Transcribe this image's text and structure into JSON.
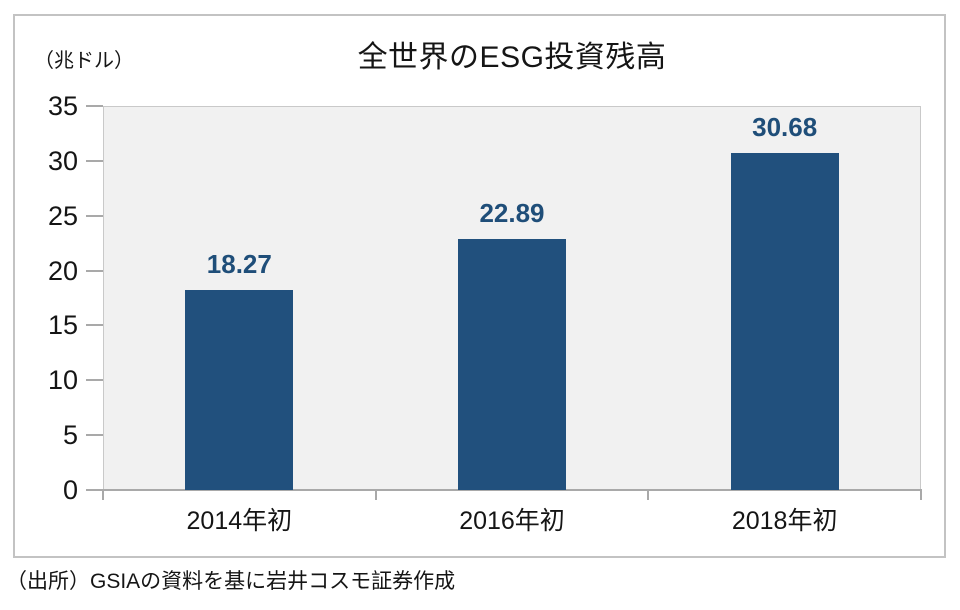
{
  "chart_data": {
    "type": "bar",
    "title": "全世界のESG投資残高",
    "unit_label": "（兆ドル）",
    "categories": [
      "2014年初",
      "2016年初",
      "2018年初"
    ],
    "values": [
      18.27,
      22.89,
      30.68
    ],
    "data_labels": [
      "18.27",
      "22.89",
      "30.68"
    ],
    "ylim": [
      0,
      35
    ],
    "yticks": [
      0,
      5,
      10,
      15,
      20,
      25,
      30,
      35
    ],
    "grid": "off",
    "legend": "none",
    "bar_color": "#21507D",
    "value_label_color": "#1F4E79",
    "plot_background": "#F1F1F1",
    "axis_color": "#A9A9A9",
    "frame_border_color": "#C3C3C3",
    "text_color": "#151515",
    "source": "（出所）GSIAの資料を基に岩井コスモ証券作成"
  }
}
